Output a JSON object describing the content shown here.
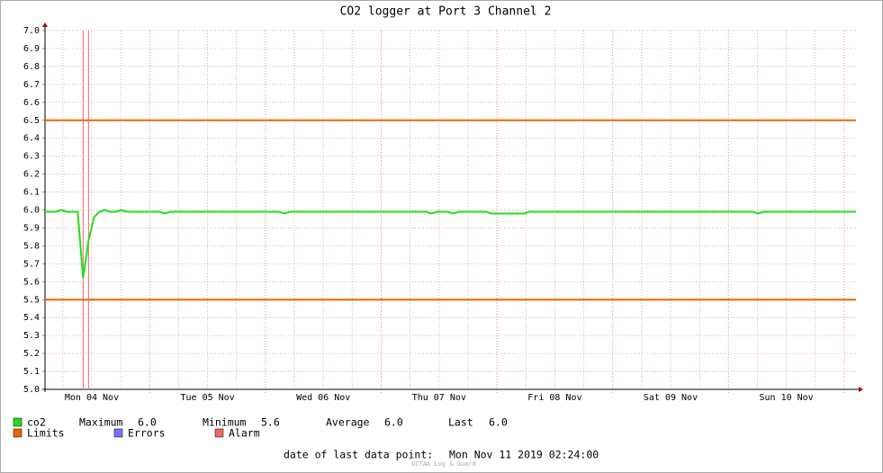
{
  "chart_data": {
    "type": "line",
    "title": "CO2 logger at Port 3 Channel 2",
    "x_labels": [
      "Mon 04 Nov",
      "Tue 05 Nov",
      "Wed 06 Nov",
      "Thu 07 Nov",
      "Fri 08 Nov",
      "Sat 09 Nov",
      "Sun 10 Nov"
    ],
    "ylim": [
      5.0,
      7.0
    ],
    "yticks": [
      {
        "value": 5.0,
        "label": "5.0"
      },
      {
        "value": 5.1,
        "label": "5.1"
      },
      {
        "value": 5.2,
        "label": "5.2"
      },
      {
        "value": 5.3,
        "label": "5.3"
      },
      {
        "value": 5.4,
        "label": "5.4"
      },
      {
        "value": 5.5,
        "label": "5.5"
      },
      {
        "value": 5.6,
        "label": "5.6"
      },
      {
        "value": 5.7,
        "label": "5.7"
      },
      {
        "value": 5.8,
        "label": "5.8"
      },
      {
        "value": 5.9,
        "label": "5.9"
      },
      {
        "value": 6.0,
        "label": "6.0"
      },
      {
        "value": 6.1,
        "label": "6.1"
      },
      {
        "value": 6.2,
        "label": "6.2"
      },
      {
        "value": 6.3,
        "label": "6.3"
      },
      {
        "value": 6.4,
        "label": "6.4"
      },
      {
        "value": 6.5,
        "label": "6.5"
      },
      {
        "value": 6.6,
        "label": "6.6"
      },
      {
        "value": 6.7,
        "label": "6.7"
      },
      {
        "value": 6.8,
        "label": "6.8"
      },
      {
        "value": 6.9,
        "label": "6.9"
      },
      {
        "value": 7.0,
        "label": "7.0"
      }
    ],
    "grid": true,
    "series": [
      {
        "name": "co2",
        "color": "#22dd22",
        "values": [
          5.99,
          5.99,
          5.99,
          6.0,
          5.99,
          5.99,
          5.99,
          5.62,
          5.83,
          5.96,
          5.99,
          6.0,
          5.99,
          5.99,
          6.0,
          5.99,
          5.99,
          5.99,
          5.99,
          5.99,
          5.99,
          5.99,
          5.98,
          5.99,
          5.99,
          5.99,
          5.99,
          5.99,
          5.99,
          5.99,
          5.99,
          5.99,
          5.99,
          5.99,
          5.99,
          5.99,
          5.99,
          5.99,
          5.99,
          5.99,
          5.99,
          5.99,
          5.99,
          5.99,
          5.98,
          5.99,
          5.99,
          5.99,
          5.99,
          5.99,
          5.99,
          5.99,
          5.99,
          5.99,
          5.99,
          5.99,
          5.99,
          5.99,
          5.99,
          5.99,
          5.99,
          5.99,
          5.99,
          5.99,
          5.99,
          5.99,
          5.99,
          5.99,
          5.99,
          5.99,
          5.99,
          5.98,
          5.99,
          5.99,
          5.99,
          5.98,
          5.99,
          5.99,
          5.99,
          5.99,
          5.99,
          5.99,
          5.98,
          5.98,
          5.98,
          5.98,
          5.98,
          5.98,
          5.98,
          5.99,
          5.99,
          5.99,
          5.99,
          5.99,
          5.99,
          5.99,
          5.99,
          5.99,
          5.99,
          5.99,
          5.99,
          5.99,
          5.99,
          5.99,
          5.99,
          5.99,
          5.99,
          5.99,
          5.99,
          5.99,
          5.99,
          5.99,
          5.99,
          5.99,
          5.99,
          5.99,
          5.99,
          5.99,
          5.99,
          5.99,
          5.99,
          5.99,
          5.99,
          5.99,
          5.99,
          5.99,
          5.99,
          5.99,
          5.99,
          5.99,
          5.99,
          5.98,
          5.99,
          5.99,
          5.99,
          5.99,
          5.99,
          5.99,
          5.99,
          5.99,
          5.99,
          5.99,
          5.99,
          5.99,
          5.99,
          5.99,
          5.99,
          5.99,
          5.99,
          5.99
        ]
      }
    ],
    "limits": {
      "name": "Limits",
      "color": "#ee6600",
      "values": [
        6.5,
        5.5
      ]
    },
    "errors": {
      "name": "Errors",
      "color": "#7777ee"
    },
    "alarm": {
      "name": "Alarm",
      "color": "#ee6666",
      "indices": [
        7,
        8
      ]
    },
    "stats": [
      {
        "name": "Maximum",
        "value": 6.0,
        "label": "6.0"
      },
      {
        "name": "Minimum",
        "value": 5.6,
        "label": "5.6"
      },
      {
        "name": "Average",
        "value": 6.0,
        "label": "6.0"
      },
      {
        "name": "Last",
        "value": 6.0,
        "label": "6.0"
      }
    ],
    "last_point_label": "date of last data point:",
    "last_point": "Mon Nov 11 2019 02:24:00",
    "watermark": "OCTAA Log & Guard"
  }
}
